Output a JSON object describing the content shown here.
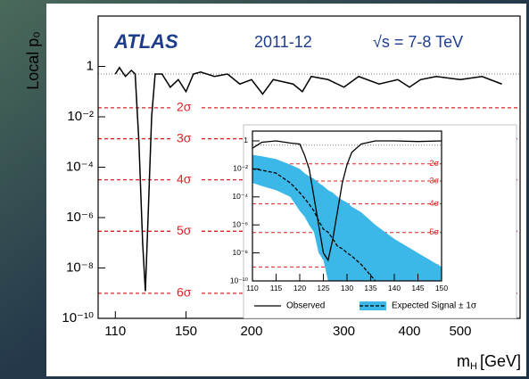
{
  "chart_data": [
    {
      "type": "line",
      "title": "ATLAS",
      "subtitle": "2011-12",
      "annotation": "√s = 7-8 TeV",
      "y_label": "Local p₀",
      "x_label": {
        "main": "m",
        "sub": "H",
        "unit": "[GeV]"
      },
      "x_log": true,
      "y_log": true,
      "xlim": [
        102,
        650
      ],
      "ylim": [
        1e-10,
        100
      ],
      "xticks": [
        110,
        150,
        200,
        300,
        400,
        500
      ],
      "yticks": [
        1,
        {
          "value": 0.01,
          "label": "10⁻²"
        },
        {
          "value": 0.0001,
          "label": "10⁻⁴"
        },
        {
          "value": 1e-06,
          "label": "10⁻⁶"
        },
        {
          "value": 1e-08,
          "label": "10⁻⁸"
        },
        {
          "value": 1e-10,
          "label": "10⁻¹⁰"
        }
      ],
      "reference_line": 0.5,
      "sigma_lines": [
        {
          "value": 0.0228,
          "label": "2σ"
        },
        {
          "value": 0.00135,
          "label": "3σ"
        },
        {
          "value": 3.17e-05,
          "label": "4σ"
        },
        {
          "value": 2.87e-07,
          "label": "5σ"
        },
        {
          "value": 9.9e-10,
          "label": "6σ"
        }
      ],
      "x": [
        110,
        112,
        115,
        118,
        120,
        122,
        124,
        125.5,
        127,
        129,
        131,
        135,
        140,
        145,
        150,
        155,
        160,
        170,
        180,
        190,
        200,
        210,
        220,
        240,
        250,
        260,
        280,
        300,
        320,
        350,
        380,
        400,
        420,
        450,
        500,
        550,
        600
      ],
      "series": [
        {
          "color": "#000000",
          "values": [
            0.5,
            0.9,
            0.4,
            0.7,
            0.5,
            0.001,
            1e-07,
            1.2e-09,
            1e-06,
            0.01,
            0.5,
            0.5,
            0.15,
            0.3,
            0.1,
            0.5,
            0.6,
            0.4,
            0.5,
            0.2,
            0.3,
            0.08,
            0.3,
            0.2,
            0.1,
            0.4,
            0.3,
            0.15,
            0.4,
            0.2,
            0.3,
            0.15,
            0.3,
            0.4,
            0.3,
            0.4,
            0.2
          ]
        }
      ]
    },
    {
      "type": "line",
      "x_log": false,
      "y_log": true,
      "xlim": [
        110,
        150
      ],
      "ylim": [
        1e-10,
        5
      ],
      "xticks": [
        110,
        115,
        120,
        125,
        130,
        135,
        140,
        145,
        150
      ],
      "yticks": [
        1,
        {
          "value": 0.01,
          "label": "10⁻²"
        },
        {
          "value": 0.0001,
          "label": "10⁻⁴"
        },
        {
          "value": 1e-06,
          "label": "10⁻⁶"
        },
        {
          "value": 1e-08,
          "label": "10⁻⁸"
        },
        {
          "value": 1e-10,
          "label": "10⁻¹⁰"
        }
      ],
      "reference_line": 0.5,
      "sigma_lines": [
        {
          "value": 0.0228,
          "label": "2σ"
        },
        {
          "value": 0.00135,
          "label": "3σ"
        },
        {
          "value": 3.17e-05,
          "label": "4σ"
        },
        {
          "value": 2.87e-07,
          "label": "5σ"
        },
        {
          "value": 9.9e-10,
          "label": "6σ"
        }
      ],
      "x": [
        110,
        112,
        115,
        118,
        120,
        121,
        122,
        123,
        124,
        125,
        126,
        127,
        128,
        129,
        130,
        131,
        133,
        136,
        140,
        145,
        150
      ],
      "band_color": "#3bb8e8",
      "band_high": [
        0.1,
        0.08,
        0.05,
        0.02,
        0.01,
        0.005,
        0.003,
        0.002,
        0.001,
        0.0006,
        0.0003,
        0.0002,
        0.0001,
        6e-05,
        4e-05,
        2e-05,
        8e-06,
        1e-06,
        1e-07,
        1e-08,
        1e-09
      ],
      "band_low": [
        0.001,
        0.0006,
        0.0003,
        0.0001,
        1e-05,
        4e-06,
        1e-06,
        3e-07,
        1e-08,
        3e-09,
        1e-10,
        1e-10,
        1e-10,
        1e-10,
        1e-10,
        1e-10,
        1e-10,
        1e-10,
        1e-10,
        1e-10,
        1e-10
      ],
      "series": [
        {
          "name": "Observed",
          "color": "#000000",
          "dashed": false,
          "values": [
            0.3,
            0.8,
            1,
            0.7,
            0.6,
            0.1,
            0.01,
            0.0001,
            1e-06,
            1e-08,
            3e-09,
            1e-07,
            1e-05,
            0.001,
            0.02,
            0.15,
            0.6,
            1,
            1,
            0.9,
            1
          ]
        },
        {
          "name": "Expected Signal ± 1σ",
          "color": "#000000",
          "dashed": true,
          "values": [
            0.01,
            0.008,
            0.005,
            0.001,
            0.0002,
            8e-05,
            3e-05,
            1e-05,
            2e-06,
            5e-07,
            3e-07,
            1e-07,
            3e-08,
            2e-08,
            1e-08,
            6e-09,
            1.5e-09,
            1e-10,
            null,
            null,
            null
          ]
        }
      ]
    }
  ]
}
